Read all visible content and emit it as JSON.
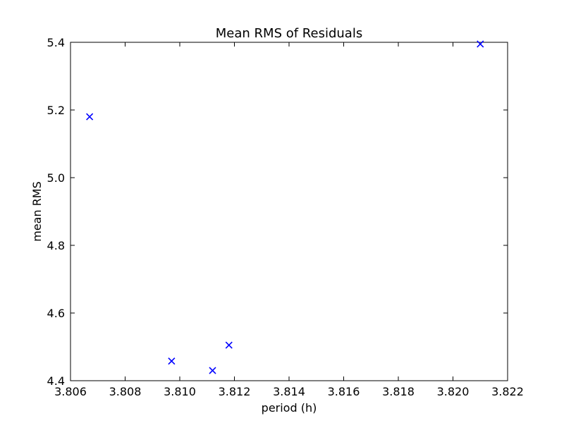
{
  "chart_data": {
    "type": "scatter",
    "title": "Mean RMS of Residuals",
    "xlabel": "period (h)",
    "ylabel": "mean RMS",
    "xlim": [
      3.806,
      3.822
    ],
    "ylim": [
      4.4,
      5.4
    ],
    "x_ticks": [
      3.806,
      3.808,
      3.81,
      3.812,
      3.814,
      3.816,
      3.818,
      3.82,
      3.822
    ],
    "x_tick_labels": [
      "3.806",
      "3.808",
      "3.810",
      "3.812",
      "3.814",
      "3.816",
      "3.818",
      "3.820",
      "3.822"
    ],
    "y_ticks": [
      4.4,
      4.6,
      4.8,
      5.0,
      5.2,
      5.4
    ],
    "y_tick_labels": [
      "4.4",
      "4.6",
      "4.8",
      "5.0",
      "5.2",
      "5.4"
    ],
    "grid": false,
    "marker": "x",
    "marker_color": "#0000ff",
    "series": [
      {
        "points": [
          {
            "x": 3.8067,
            "y": 5.18
          },
          {
            "x": 3.8097,
            "y": 4.458
          },
          {
            "x": 3.8112,
            "y": 4.43
          },
          {
            "x": 3.8118,
            "y": 4.505
          },
          {
            "x": 3.821,
            "y": 5.395
          }
        ]
      }
    ]
  }
}
